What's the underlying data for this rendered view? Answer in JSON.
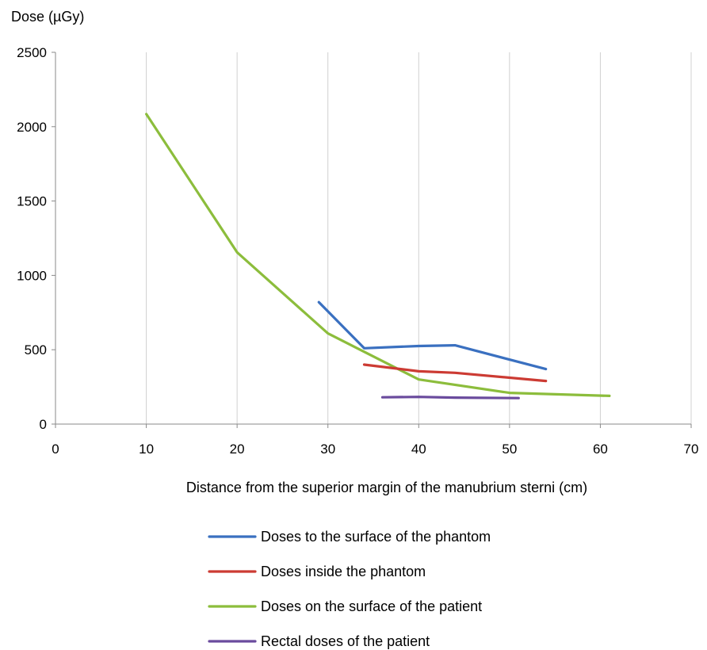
{
  "chart_data": {
    "type": "line",
    "ylabel": "Dose (µGy)",
    "xlabel": "Distance from the superior margin of the manubrium sterni (cm)",
    "xlim": [
      0,
      70
    ],
    "ylim": [
      0,
      2500
    ],
    "x_ticks": [
      0,
      10,
      20,
      30,
      40,
      50,
      60,
      70
    ],
    "y_ticks": [
      0,
      500,
      1000,
      1500,
      2000,
      2500
    ],
    "grid": "vertical",
    "legend": "bottom",
    "series": [
      {
        "name": "Doses to the surface of the phantom",
        "color": "#3a70c0",
        "points": [
          [
            29,
            820
          ],
          [
            34,
            510
          ],
          [
            40,
            525
          ],
          [
            44,
            530
          ],
          [
            54,
            370
          ]
        ]
      },
      {
        "name": "Doses inside the phantom",
        "color": "#cc3b33",
        "points": [
          [
            34,
            400
          ],
          [
            40,
            355
          ],
          [
            44,
            345
          ],
          [
            54,
            290
          ]
        ]
      },
      {
        "name": "Doses on the surface of the patient",
        "color": "#8cbd3c",
        "points": [
          [
            10,
            2085
          ],
          [
            20,
            1155
          ],
          [
            30,
            610
          ],
          [
            40,
            300
          ],
          [
            50,
            210
          ],
          [
            61,
            190
          ]
        ]
      },
      {
        "name": "Rectal doses of the patient",
        "color": "#6a4b9d",
        "points": [
          [
            36,
            180
          ],
          [
            40,
            183
          ],
          [
            44,
            178
          ],
          [
            51,
            175
          ]
        ]
      }
    ]
  }
}
